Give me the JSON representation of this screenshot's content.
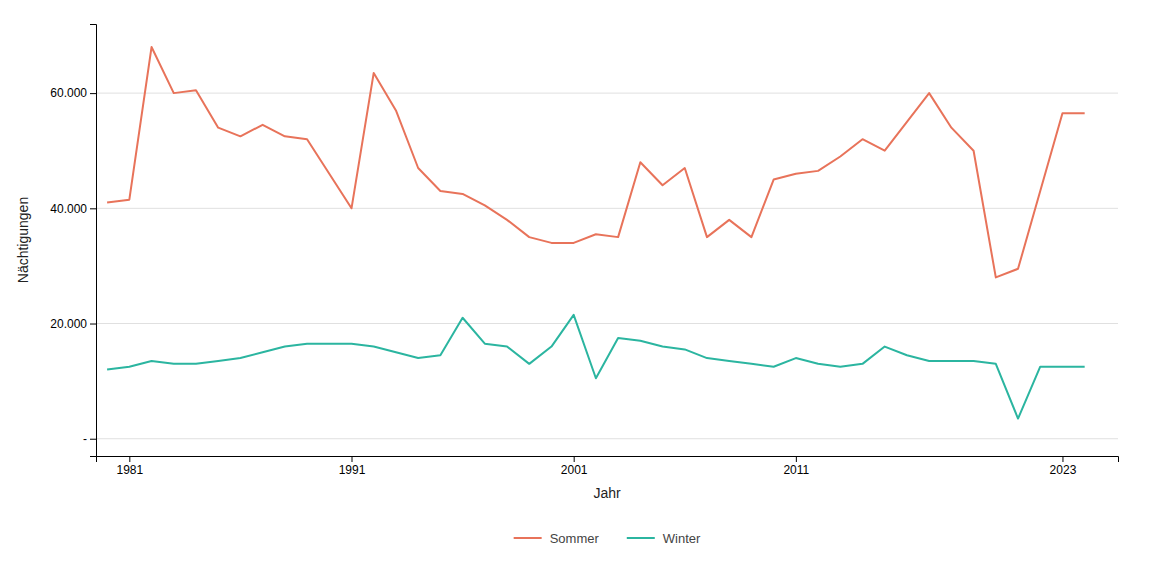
{
  "chart_data": {
    "type": "line",
    "x": [
      1980,
      1981,
      1982,
      1983,
      1984,
      1985,
      1986,
      1987,
      1988,
      1989,
      1990,
      1991,
      1992,
      1993,
      1994,
      1995,
      1996,
      1997,
      1998,
      1999,
      2000,
      2001,
      2002,
      2003,
      2004,
      2005,
      2006,
      2007,
      2008,
      2009,
      2010,
      2011,
      2012,
      2013,
      2014,
      2015,
      2016,
      2017,
      2018,
      2019,
      2020,
      2021,
      2022,
      2023,
      2024
    ],
    "series": [
      {
        "name": "Sommer",
        "color": "#E8735A",
        "values": [
          41000,
          41500,
          68000,
          60000,
          60500,
          54000,
          52500,
          54500,
          52500,
          52000,
          46000,
          40000,
          63500,
          57000,
          47000,
          43000,
          42500,
          40500,
          38000,
          35000,
          34000,
          34000,
          35500,
          35000,
          48000,
          44000,
          47000,
          35000,
          38000,
          35000,
          45000,
          46000,
          46500,
          49000,
          52000,
          50000,
          55000,
          60000,
          54000,
          50000,
          28000,
          29500,
          43000,
          56500,
          56500
        ]
      },
      {
        "name": "Winter",
        "color": "#2BB5A0",
        "values": [
          12000,
          12500,
          13500,
          13000,
          13000,
          13500,
          14000,
          15000,
          16000,
          16500,
          16500,
          16500,
          16000,
          15000,
          14000,
          14500,
          21000,
          16500,
          16000,
          13000,
          16000,
          21500,
          10500,
          17500,
          17000,
          16000,
          15500,
          14000,
          13500,
          13000,
          12500,
          14000,
          13000,
          12500,
          13000,
          16000,
          14500,
          13500,
          13500,
          13500,
          13000,
          3500,
          12500,
          12500,
          12500
        ]
      }
    ],
    "xlabel": "Jahr",
    "ylabel": "Nächtigungen",
    "xlim": [
      1979.5,
      2025.5
    ],
    "ylim": [
      -3000,
      72000
    ],
    "xticks": [
      1981,
      1991,
      2001,
      2011,
      2023
    ],
    "yticks": [
      {
        "value": 0,
        "label": "-"
      },
      {
        "value": 20000,
        "label": "20.000"
      },
      {
        "value": 40000,
        "label": "40.000"
      },
      {
        "value": 60000,
        "label": "60.000"
      }
    ],
    "grid": true,
    "legend": "bottom"
  }
}
